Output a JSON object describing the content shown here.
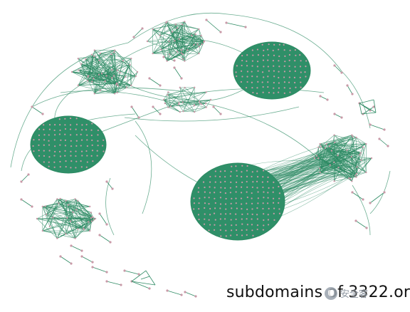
{
  "caption": "subdomains of 3322.org",
  "watermark": {
    "text": "安全客",
    "icon": "wechat-logo-icon"
  },
  "colors": {
    "edge": "#2e8b64",
    "cluster_fill": "#2f8f68",
    "node": "#c99aa8",
    "background": "#ffffff"
  }
}
